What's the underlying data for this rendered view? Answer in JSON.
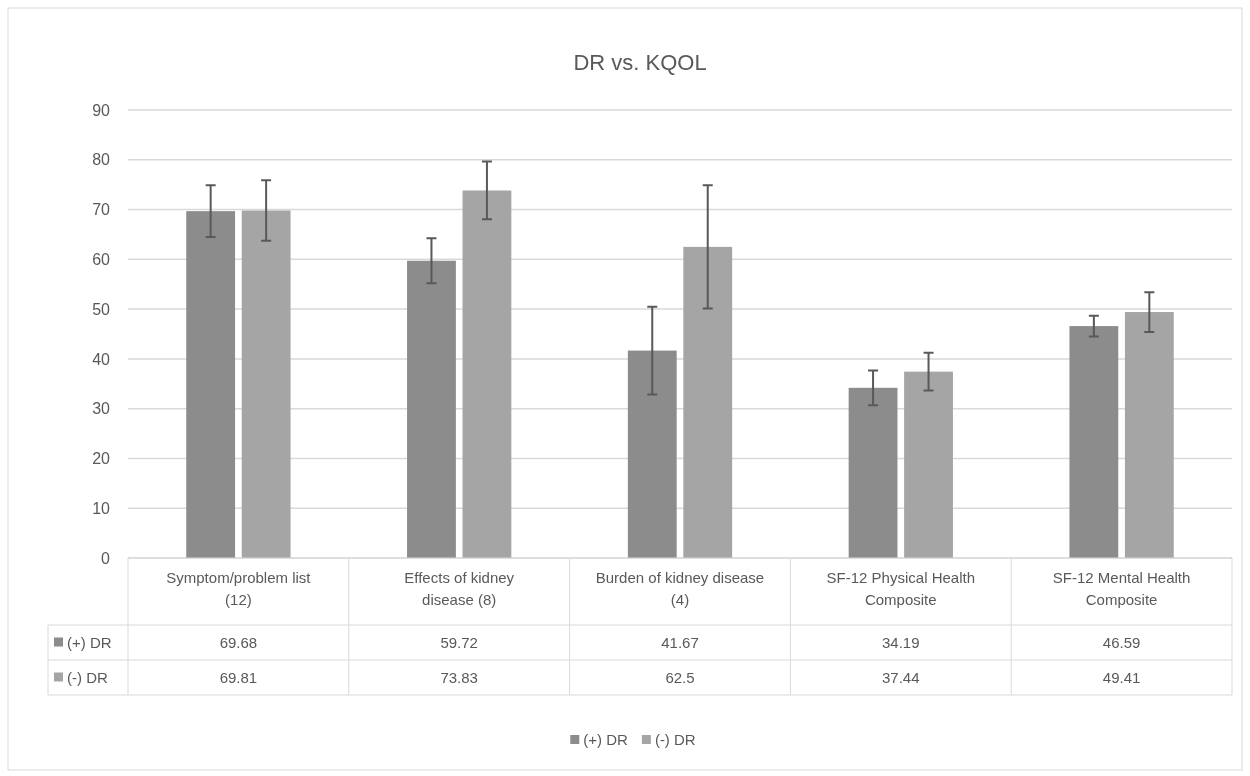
{
  "chart_data": {
    "type": "bar",
    "title": "DR vs. KQOL",
    "categories": [
      "Symptom/problem list (12)",
      "Effects of kidney disease (8)",
      "Burden of kidney disease (4)",
      "SF-12 Physical Health Composite",
      "SF-12 Mental Health Composite"
    ],
    "series": [
      {
        "name": "(+) DR",
        "color": "#8c8c8c",
        "values": [
          69.68,
          59.72,
          41.67,
          34.19,
          46.59
        ],
        "errors": [
          5.2,
          4.5,
          8.8,
          3.5,
          2.1
        ]
      },
      {
        "name": "(-) DR",
        "color": "#a5a5a5",
        "values": [
          69.81,
          73.83,
          62.5,
          37.44,
          49.41
        ],
        "errors": [
          6.1,
          5.8,
          12.4,
          3.8,
          4.0
        ]
      }
    ],
    "ylim": [
      0,
      90
    ],
    "yticks": [
      0,
      10,
      20,
      30,
      40,
      50,
      60,
      70,
      80,
      90
    ],
    "grid": "y",
    "legend": "bottom",
    "data_labels": true
  }
}
